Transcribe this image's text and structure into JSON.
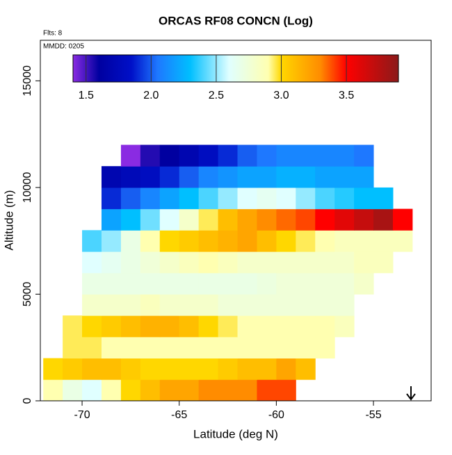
{
  "chart_data": {
    "type": "heatmap",
    "title": "ORCAS RF08 CONCN (Log)",
    "flights_label": "Flts: 8",
    "date_label": "MMDD: 0205",
    "x_label": "Latitude (deg N)",
    "y_label": "Altitude (m)",
    "xlim": [
      -72.15,
      -52.03
    ],
    "ylim": [
      0,
      16900
    ],
    "xticks": [
      -70,
      -65,
      -60,
      -55
    ],
    "yticks": [
      0,
      5000,
      10000,
      15000
    ],
    "x_bins": [
      -72,
      -71,
      -70,
      -69,
      -68,
      -67,
      -66,
      -65,
      -64,
      -63,
      -62,
      -61,
      -60,
      -59,
      -58,
      -57,
      -56,
      -55,
      -54,
      -53
    ],
    "y_bins": [
      0,
      1000,
      2000,
      3000,
      4000,
      5000,
      6000,
      7000,
      8000,
      9000,
      10000,
      11000,
      12000
    ],
    "z": [
      [
        2.9,
        2.7,
        2.6,
        2.9,
        3.0,
        3.1,
        3.2,
        3.2,
        3.3,
        3.3,
        3.3,
        3.4,
        3.4,
        null,
        null,
        null,
        null,
        null,
        null
      ],
      [
        3.0,
        3.05,
        3.1,
        3.1,
        3.05,
        3.0,
        3.0,
        3.0,
        3.0,
        3.05,
        3.1,
        3.1,
        3.2,
        3.1,
        null,
        null,
        null,
        null,
        null
      ],
      [
        null,
        2.95,
        2.95,
        2.9,
        2.9,
        2.9,
        2.9,
        2.9,
        2.9,
        2.9,
        2.9,
        2.9,
        2.9,
        2.9,
        2.9,
        null,
        null,
        null,
        null
      ],
      [
        null,
        2.95,
        3.0,
        3.05,
        3.1,
        3.15,
        3.15,
        3.1,
        3.0,
        2.95,
        2.9,
        2.9,
        2.9,
        2.9,
        2.9,
        2.85,
        null,
        null,
        null
      ],
      [
        null,
        null,
        2.8,
        2.8,
        2.8,
        2.85,
        2.8,
        2.8,
        2.8,
        2.75,
        2.75,
        2.75,
        2.75,
        2.75,
        2.75,
        2.75,
        null,
        null,
        null
      ],
      [
        null,
        null,
        2.7,
        2.7,
        2.7,
        2.7,
        2.7,
        2.7,
        2.7,
        2.7,
        2.7,
        2.72,
        2.75,
        2.75,
        2.75,
        2.75,
        2.8,
        null,
        null
      ],
      [
        null,
        null,
        2.6,
        2.65,
        2.7,
        2.75,
        2.8,
        2.85,
        2.9,
        2.85,
        2.8,
        2.8,
        2.8,
        2.8,
        2.8,
        2.8,
        2.85,
        2.85,
        null
      ],
      [
        null,
        null,
        2.4,
        2.5,
        2.7,
        2.9,
        3.0,
        3.05,
        3.1,
        3.15,
        3.2,
        3.1,
        3.0,
        2.95,
        2.9,
        2.85,
        2.85,
        2.85,
        2.85
      ],
      [
        null,
        null,
        null,
        2.2,
        2.3,
        2.45,
        2.6,
        2.8,
        2.95,
        3.1,
        3.2,
        3.3,
        3.35,
        3.4,
        3.5,
        3.6,
        3.7,
        3.8,
        3.5
      ],
      [
        null,
        null,
        null,
        1.9,
        2.0,
        2.1,
        2.2,
        2.3,
        2.4,
        2.5,
        2.6,
        2.65,
        2.6,
        2.5,
        2.4,
        2.35,
        2.3,
        2.3,
        null
      ],
      [
        null,
        null,
        null,
        1.7,
        1.75,
        1.8,
        1.9,
        2.0,
        2.1,
        2.15,
        2.2,
        2.2,
        2.25,
        2.25,
        2.2,
        2.2,
        2.2,
        null,
        null
      ],
      [
        null,
        null,
        null,
        null,
        1.4,
        1.55,
        1.6,
        1.7,
        1.8,
        1.9,
        2.0,
        2.05,
        2.1,
        2.1,
        2.1,
        2.1,
        2.05,
        null,
        null
      ]
    ],
    "clim": [
      1.4,
      3.9
    ],
    "cticks": [
      {
        "value": 1.5,
        "label": "1.5"
      },
      {
        "value": 2,
        "label": "2.0"
      },
      {
        "value": 2.5,
        "label": "2.5"
      },
      {
        "value": 3,
        "label": "3.0"
      },
      {
        "value": 3.5,
        "label": "3.5"
      }
    ],
    "colorscale": [
      [
        1.4,
        "#8a2be2"
      ],
      [
        1.6,
        "#0000a0"
      ],
      [
        1.85,
        "#0010c8"
      ],
      [
        2.05,
        "#1e78ff"
      ],
      [
        2.3,
        "#00bfff"
      ],
      [
        2.6,
        "#e0ffff"
      ],
      [
        2.9,
        "#ffffb0"
      ],
      [
        3.0,
        "#ffd700"
      ],
      [
        3.3,
        "#ff8c00"
      ],
      [
        3.5,
        "#ff0000"
      ],
      [
        3.9,
        "#8b1a1a"
      ]
    ]
  }
}
